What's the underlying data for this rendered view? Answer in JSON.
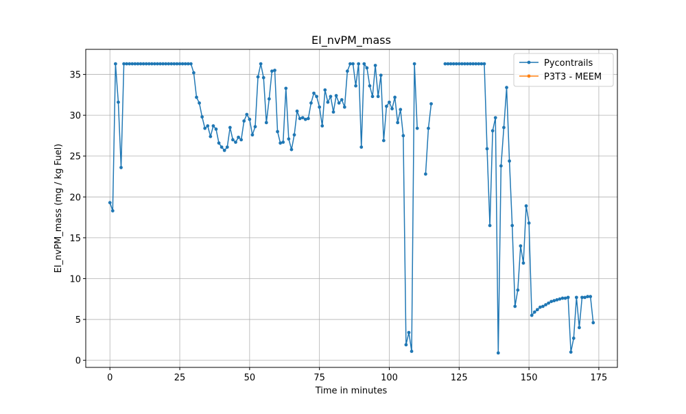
{
  "chart_data": {
    "type": "line",
    "title": "EI_nvPM_mass",
    "x_label": "Time in minutes",
    "y_label": "EI_nvPM_mass (mg / kg Fuel)",
    "x": [
      0,
      1,
      2,
      3,
      4,
      5,
      6,
      7,
      8,
      9,
      10,
      11,
      12,
      13,
      14,
      15,
      16,
      17,
      18,
      19,
      20,
      21,
      22,
      23,
      24,
      25,
      26,
      27,
      28,
      29,
      30,
      31,
      32,
      33,
      34,
      35,
      36,
      37,
      38,
      39,
      40,
      41,
      42,
      43,
      44,
      45,
      46,
      47,
      48,
      49,
      50,
      51,
      52,
      53,
      54,
      55,
      56,
      57,
      58,
      59,
      60,
      61,
      62,
      63,
      64,
      65,
      66,
      67,
      68,
      69,
      70,
      71,
      72,
      73,
      74,
      75,
      76,
      77,
      78,
      79,
      80,
      81,
      82,
      83,
      84,
      85,
      86,
      87,
      88,
      89,
      90,
      91,
      92,
      93,
      94,
      95,
      96,
      97,
      98,
      99,
      100,
      101,
      102,
      103,
      104,
      105,
      106,
      107,
      108,
      109,
      110,
      111,
      112,
      113,
      114,
      115,
      116,
      117,
      118,
      119,
      120,
      121,
      122,
      123,
      124,
      125,
      126,
      127,
      128,
      129,
      130,
      131,
      132,
      133,
      134,
      135,
      136,
      137,
      138,
      139,
      140,
      141,
      142,
      143,
      144,
      145,
      146,
      147,
      148,
      149,
      150,
      151,
      152,
      153,
      154,
      155,
      156,
      157,
      158,
      159,
      160,
      161,
      162,
      163,
      164,
      165,
      166,
      167,
      168,
      169,
      170,
      171,
      172,
      173
    ],
    "series": [
      {
        "name": "Pycontrails",
        "color": "#1f77b4",
        "values": [
          19.3,
          18.3,
          36.3,
          31.6,
          23.6,
          36.3,
          36.3,
          36.3,
          36.3,
          36.3,
          36.3,
          36.3,
          36.3,
          36.3,
          36.3,
          36.3,
          36.3,
          36.3,
          36.3,
          36.3,
          36.3,
          36.3,
          36.3,
          36.3,
          36.3,
          36.3,
          36.3,
          36.3,
          36.3,
          36.3,
          35.2,
          32.2,
          31.5,
          29.8,
          28.4,
          28.7,
          27.4,
          28.7,
          28.3,
          26.6,
          26.1,
          25.7,
          26.1,
          28.5,
          27.0,
          26.7,
          27.3,
          27.0,
          29.3,
          30.1,
          29.5,
          27.6,
          28.6,
          34.7,
          36.3,
          34.6,
          29.1,
          32.0,
          35.4,
          35.5,
          28.0,
          26.6,
          26.7,
          33.3,
          27.1,
          25.8,
          27.6,
          30.5,
          29.6,
          29.7,
          29.5,
          29.6,
          31.5,
          32.7,
          32.3,
          31.0,
          28.7,
          33.1,
          31.6,
          32.3,
          30.4,
          32.4,
          31.5,
          31.9,
          31.0,
          35.4,
          36.3,
          36.3,
          33.6,
          36.3,
          26.1,
          36.3,
          35.8,
          33.6,
          32.3,
          36.1,
          32.3,
          34.9,
          26.9,
          31.1,
          31.6,
          30.8,
          32.2,
          29.1,
          30.7,
          27.5,
          1.9,
          3.4,
          1.1,
          36.3,
          28.4,
          null,
          null,
          22.8,
          28.4,
          31.4,
          null,
          null,
          null,
          null,
          36.3,
          36.3,
          36.3,
          36.3,
          36.3,
          36.3,
          36.3,
          36.3,
          36.3,
          36.3,
          36.3,
          36.3,
          36.3,
          36.3,
          36.3,
          25.9,
          16.5,
          28.1,
          29.7,
          0.9,
          23.8,
          28.5,
          33.4,
          24.4,
          16.5,
          6.6,
          8.6,
          14.0,
          11.9,
          18.9,
          16.8,
          5.5,
          5.9,
          6.2,
          6.5,
          6.6,
          6.8,
          7.0,
          7.2,
          7.3,
          7.4,
          7.5,
          7.6,
          7.6,
          7.7,
          1.0,
          2.7,
          7.7,
          4.0,
          7.7,
          7.7,
          7.8,
          7.8,
          4.6
        ]
      },
      {
        "name": "P3T3 - MEEM",
        "color": "#ff7f0e",
        "values": [
          null,
          null,
          null,
          null,
          null,
          null,
          null,
          null,
          null,
          null,
          null,
          null,
          null,
          null,
          null,
          null,
          null,
          null,
          null,
          null,
          null,
          null,
          null,
          null,
          null,
          null,
          null,
          null,
          null,
          null,
          null,
          null,
          null,
          null,
          null,
          null,
          null,
          null,
          null,
          null,
          null,
          null,
          null,
          null,
          null,
          null,
          null,
          null,
          null,
          null,
          null,
          null,
          null,
          null,
          null,
          null,
          null,
          null,
          null,
          null,
          null,
          null,
          null,
          null,
          null,
          null,
          null,
          null,
          null,
          null,
          null,
          null,
          null,
          null,
          null,
          null,
          null,
          null,
          null,
          null,
          null,
          null,
          null,
          null,
          null,
          null,
          null,
          null,
          null,
          null,
          null,
          null,
          null,
          null,
          null,
          null,
          null,
          null,
          null,
          null,
          null,
          null,
          null,
          null,
          null,
          null,
          null,
          null,
          null,
          null,
          null,
          null,
          null,
          null,
          null,
          null,
          null,
          null,
          null,
          null,
          null,
          null,
          null,
          null,
          null,
          null,
          null,
          null,
          null,
          null,
          null,
          null,
          null,
          null,
          null,
          null,
          null,
          null,
          null,
          null,
          null,
          null,
          null,
          null,
          null,
          null,
          null,
          null,
          null,
          null,
          null,
          null,
          null,
          null,
          null,
          null,
          null,
          null,
          null,
          null,
          null,
          null,
          null,
          null,
          null,
          null,
          null,
          null,
          null,
          null,
          null,
          null,
          null,
          null
        ]
      }
    ],
    "xlim": [
      -8.65,
      181.65
    ],
    "ylim": [
      -0.87,
      38.07
    ],
    "xticks": [
      0,
      25,
      50,
      75,
      100,
      125,
      150,
      175
    ],
    "yticks": [
      0,
      5,
      10,
      15,
      20,
      25,
      30,
      35
    ],
    "grid": true,
    "legend": "upper right"
  }
}
